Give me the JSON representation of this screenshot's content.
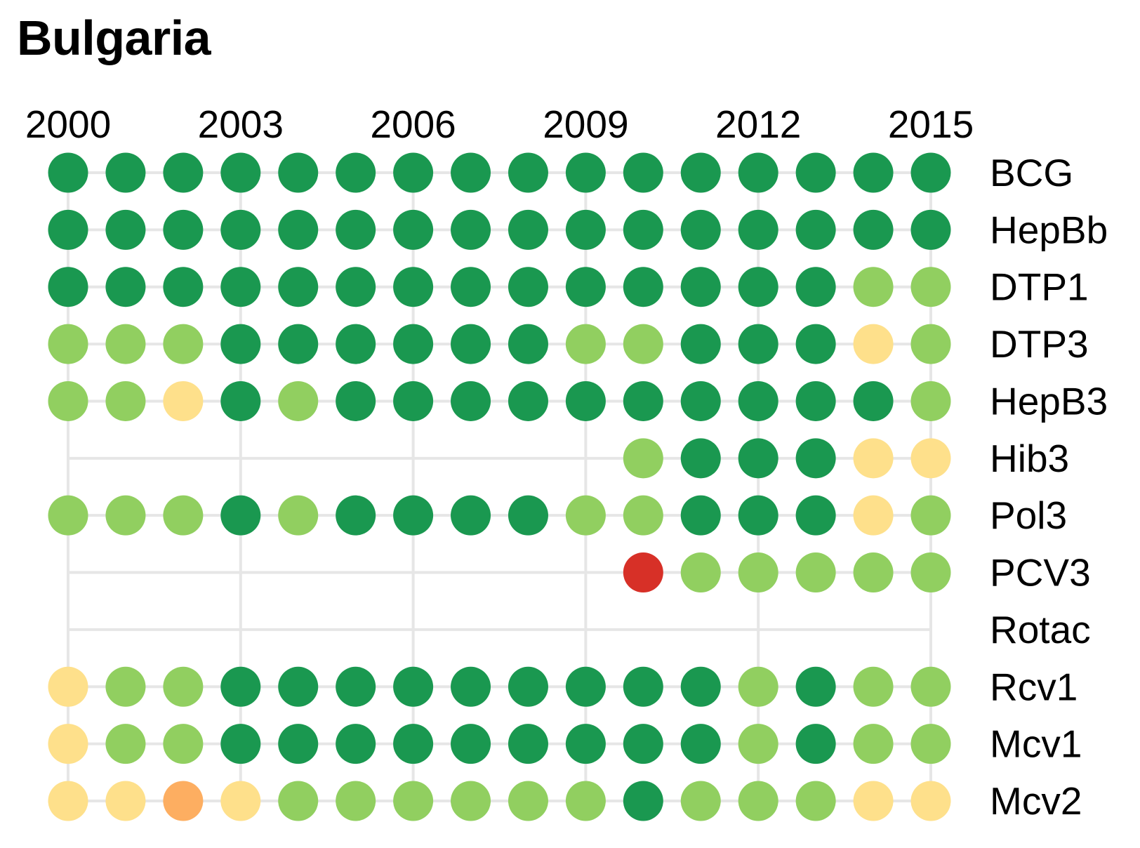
{
  "title": "Bulgaria",
  "chart_data": {
    "type": "heatmap",
    "title": "Bulgaria",
    "x": [
      2000,
      2001,
      2002,
      2003,
      2004,
      2005,
      2006,
      2007,
      2008,
      2009,
      2010,
      2011,
      2012,
      2013,
      2014,
      2015
    ],
    "x_tick_labels": [
      "2000",
      "2003",
      "2006",
      "2009",
      "2012",
      "2015"
    ],
    "x_tick_values": [
      2000,
      2003,
      2006,
      2009,
      2012,
      2015
    ],
    "grid": true,
    "color_scale": {
      "1": "#d73027",
      "2": "#fdae61",
      "3": "#fee08b",
      "4": "#91cf60",
      "5": "#1a9850"
    },
    "rows": [
      {
        "name": "BCG",
        "levels": [
          5,
          5,
          5,
          5,
          5,
          5,
          5,
          5,
          5,
          5,
          5,
          5,
          5,
          5,
          5,
          5
        ]
      },
      {
        "name": "HepBb",
        "levels": [
          5,
          5,
          5,
          5,
          5,
          5,
          5,
          5,
          5,
          5,
          5,
          5,
          5,
          5,
          5,
          5
        ]
      },
      {
        "name": "DTP1",
        "levels": [
          5,
          5,
          5,
          5,
          5,
          5,
          5,
          5,
          5,
          5,
          5,
          5,
          5,
          5,
          4,
          4
        ]
      },
      {
        "name": "DTP3",
        "levels": [
          4,
          4,
          4,
          5,
          5,
          5,
          5,
          5,
          5,
          4,
          4,
          5,
          5,
          5,
          3,
          4
        ]
      },
      {
        "name": "HepB3",
        "levels": [
          4,
          4,
          3,
          5,
          4,
          5,
          5,
          5,
          5,
          5,
          5,
          5,
          5,
          5,
          5,
          4
        ]
      },
      {
        "name": "Hib3",
        "levels": [
          null,
          null,
          null,
          null,
          null,
          null,
          null,
          null,
          null,
          null,
          4,
          5,
          5,
          5,
          3,
          3
        ]
      },
      {
        "name": "Pol3",
        "levels": [
          4,
          4,
          4,
          5,
          4,
          5,
          5,
          5,
          5,
          4,
          4,
          5,
          5,
          5,
          3,
          4
        ]
      },
      {
        "name": "PCV3",
        "levels": [
          null,
          null,
          null,
          null,
          null,
          null,
          null,
          null,
          null,
          null,
          1,
          4,
          4,
          4,
          4,
          4
        ]
      },
      {
        "name": "Rotac",
        "levels": [
          null,
          null,
          null,
          null,
          null,
          null,
          null,
          null,
          null,
          null,
          null,
          null,
          null,
          null,
          null,
          null
        ]
      },
      {
        "name": "Rcv1",
        "levels": [
          3,
          4,
          4,
          5,
          5,
          5,
          5,
          5,
          5,
          5,
          5,
          5,
          4,
          5,
          4,
          4
        ]
      },
      {
        "name": "Mcv1",
        "levels": [
          3,
          4,
          4,
          5,
          5,
          5,
          5,
          5,
          5,
          5,
          5,
          5,
          4,
          5,
          4,
          4
        ]
      },
      {
        "name": "Mcv2",
        "levels": [
          3,
          3,
          2,
          3,
          4,
          4,
          4,
          4,
          4,
          4,
          5,
          4,
          4,
          4,
          3,
          3
        ]
      }
    ]
  }
}
